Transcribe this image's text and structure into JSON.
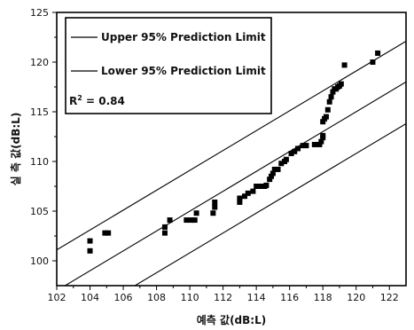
{
  "chart_data": {
    "type": "scatter",
    "xlabel": "예측 값(dB:L)",
    "ylabel": "실 측 값(dB:L)",
    "xlim": [
      102,
      123
    ],
    "ylim": [
      97.5,
      125
    ],
    "xticks": [
      102,
      104,
      106,
      108,
      110,
      112,
      114,
      116,
      118,
      120,
      122
    ],
    "yticks": [
      100,
      105,
      110,
      115,
      120,
      125
    ],
    "grid": false,
    "legend_position": "top-left",
    "legend": {
      "upper_label": "Upper 95% Prediction Limit",
      "lower_label": "Lower 95% Prediction Limit",
      "r2_prefix": "R",
      "r2_superscript": "2",
      "r2_value": " = 0.84"
    },
    "series": [
      {
        "type": "scatter",
        "marker": "square",
        "color": "#000000",
        "points": [
          [
            104.0,
            102.0
          ],
          [
            104.0,
            101.0
          ],
          [
            104.9,
            102.8
          ],
          [
            105.1,
            102.8
          ],
          [
            108.5,
            102.8
          ],
          [
            108.5,
            103.4
          ],
          [
            108.8,
            104.1
          ],
          [
            109.8,
            104.1
          ],
          [
            110.1,
            104.1
          ],
          [
            110.3,
            104.1
          ],
          [
            110.4,
            104.8
          ],
          [
            111.4,
            104.8
          ],
          [
            111.5,
            105.4
          ],
          [
            111.5,
            105.9
          ],
          [
            113.0,
            105.9
          ],
          [
            113.0,
            106.3
          ],
          [
            113.3,
            106.5
          ],
          [
            113.5,
            106.8
          ],
          [
            113.8,
            107.0
          ],
          [
            114.0,
            107.5
          ],
          [
            114.3,
            107.5
          ],
          [
            114.5,
            107.5
          ],
          [
            114.6,
            107.6
          ],
          [
            114.8,
            108.2
          ],
          [
            114.9,
            108.5
          ],
          [
            115.0,
            108.8
          ],
          [
            115.1,
            109.2
          ],
          [
            115.3,
            109.2
          ],
          [
            115.5,
            109.8
          ],
          [
            115.7,
            110.0
          ],
          [
            115.8,
            110.2
          ],
          [
            116.1,
            110.8
          ],
          [
            116.3,
            111.0
          ],
          [
            116.5,
            111.3
          ],
          [
            116.8,
            111.6
          ],
          [
            117.0,
            111.6
          ],
          [
            117.5,
            111.7
          ],
          [
            117.8,
            111.7
          ],
          [
            117.9,
            112.0
          ],
          [
            118.0,
            112.4
          ],
          [
            118.0,
            112.6
          ],
          [
            118.0,
            114.0
          ],
          [
            118.1,
            114.3
          ],
          [
            118.2,
            114.5
          ],
          [
            118.3,
            115.2
          ],
          [
            118.4,
            116.0
          ],
          [
            118.5,
            116.5
          ],
          [
            118.6,
            117.0
          ],
          [
            118.7,
            117.3
          ],
          [
            118.8,
            117.3
          ],
          [
            118.9,
            117.5
          ],
          [
            119.0,
            117.6
          ],
          [
            119.1,
            117.8
          ],
          [
            119.3,
            119.7
          ],
          [
            121.0,
            120.0
          ],
          [
            121.3,
            120.9
          ]
        ]
      },
      {
        "type": "line",
        "role": "upper",
        "points": [
          [
            102,
            101.1
          ],
          [
            123,
            122.1
          ]
        ]
      },
      {
        "type": "line",
        "role": "fit",
        "points": [
          [
            102,
            97.0
          ],
          [
            123,
            118.0
          ]
        ]
      },
      {
        "type": "line",
        "role": "lower",
        "points": [
          [
            102,
            92.8
          ],
          [
            123,
            113.8
          ]
        ]
      }
    ]
  }
}
